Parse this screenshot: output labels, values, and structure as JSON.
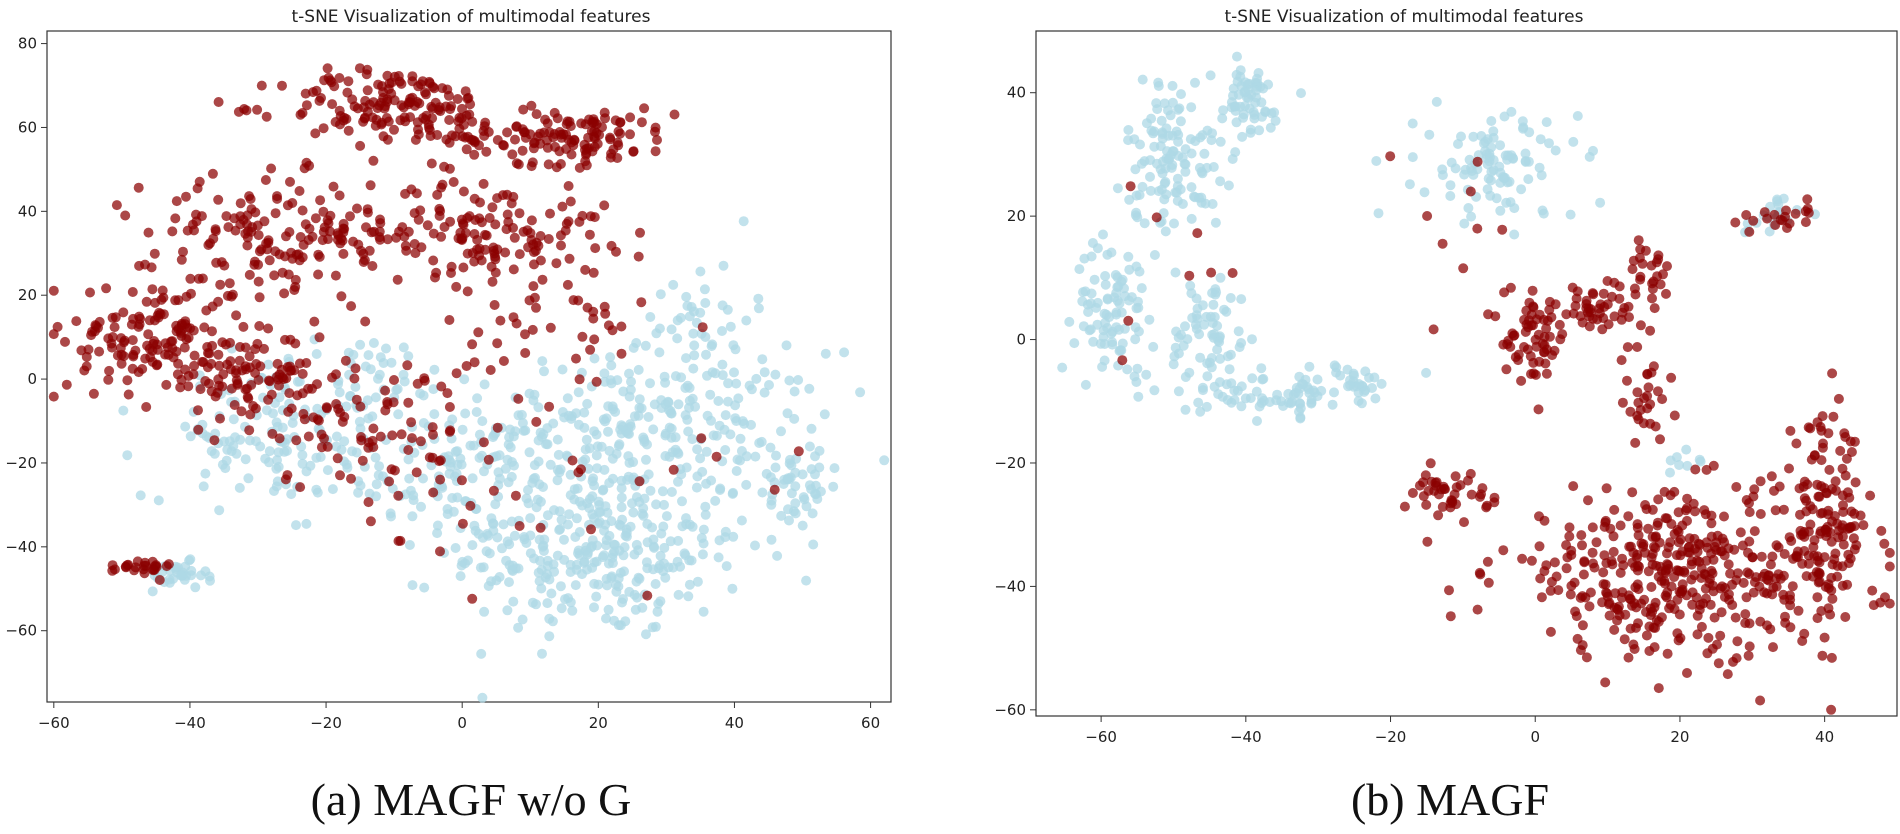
{
  "colors": {
    "light_blue": "#add8e6",
    "dark_red": "#8b0000",
    "axis": "#333333"
  },
  "panels": [
    {
      "caption": "(a) MAGF w/o G"
    },
    {
      "caption": "(b) MAGF"
    }
  ],
  "chart_data": [
    {
      "type": "scatter",
      "title": "t-SNE Visualization of multimodal features",
      "xlim": [
        -61,
        63
      ],
      "ylim": [
        -77,
        83
      ],
      "xticks": [
        -60,
        -40,
        -20,
        0,
        20,
        40,
        60
      ],
      "yticks": [
        -60,
        -40,
        -20,
        0,
        20,
        40,
        60,
        80
      ],
      "xtick_labels": [
        "−60",
        "−40",
        "−20",
        "0",
        "20",
        "40",
        "60"
      ],
      "ytick_labels": [
        "−60",
        "−40",
        "−20",
        "0",
        "20",
        "40",
        "60",
        "80"
      ],
      "grid": false,
      "series": [
        {
          "color": "#add8e6",
          "clusters": [
            {
              "cx": 20,
              "cy": -40,
              "rx": 20,
              "ry": 20,
              "n": 320
            },
            {
              "cx": 30,
              "cy": -10,
              "rx": 22,
              "ry": 15,
              "n": 200
            },
            {
              "cx": 0,
              "cy": -20,
              "rx": 20,
              "ry": 14,
              "n": 170
            },
            {
              "cx": -30,
              "cy": -15,
              "rx": 15,
              "ry": 12,
              "n": 90
            },
            {
              "cx": -42,
              "cy": -47,
              "rx": 4,
              "ry": 3,
              "n": 30
            },
            {
              "cx": 48,
              "cy": -25,
              "rx": 7,
              "ry": 10,
              "n": 50
            },
            {
              "cx": 35,
              "cy": 15,
              "rx": 7,
              "ry": 12,
              "n": 40
            },
            {
              "cx": -15,
              "cy": 0,
              "rx": 15,
              "ry": 10,
              "n": 60
            }
          ]
        },
        {
          "color": "#8b0000",
          "clusters": [
            {
              "cx": -10,
              "cy": 65,
              "rx": 15,
              "ry": 8,
              "n": 150
            },
            {
              "cx": 15,
              "cy": 58,
              "rx": 15,
              "ry": 6,
              "n": 130
            },
            {
              "cx": -25,
              "cy": 35,
              "rx": 20,
              "ry": 12,
              "n": 170
            },
            {
              "cx": -45,
              "cy": 10,
              "rx": 12,
              "ry": 14,
              "n": 150
            },
            {
              "cx": -30,
              "cy": 0,
              "rx": 10,
              "ry": 10,
              "n": 80
            },
            {
              "cx": 5,
              "cy": 35,
              "rx": 15,
              "ry": 12,
              "n": 130
            },
            {
              "cx": -15,
              "cy": -10,
              "rx": 15,
              "ry": 15,
              "n": 80
            },
            {
              "cx": -48,
              "cy": -45,
              "rx": 5,
              "ry": 2,
              "n": 25
            },
            {
              "cx": 15,
              "cy": 10,
              "rx": 15,
              "ry": 15,
              "n": 40
            },
            {
              "cx": 10,
              "cy": -30,
              "rx": 25,
              "ry": 20,
              "n": 30
            }
          ]
        }
      ]
    },
    {
      "type": "scatter",
      "title": "t-SNE Visualization of multimodal features",
      "xlim": [
        -69,
        50
      ],
      "ylim": [
        -61,
        50
      ],
      "xticks": [
        -60,
        -40,
        -20,
        0,
        20,
        40
      ],
      "yticks": [
        -60,
        -40,
        -20,
        0,
        20,
        40
      ],
      "xtick_labels": [
        "−60",
        "−40",
        "−20",
        "0",
        "20",
        "40"
      ],
      "ytick_labels": [
        "−60",
        "−40",
        "−20",
        "0",
        "20",
        "40"
      ],
      "grid": false,
      "series": [
        {
          "color": "#add8e6",
          "clusters": [
            {
              "cx": -50,
              "cy": 30,
              "rx": 6,
              "ry": 12,
              "n": 120
            },
            {
              "cx": -40,
              "cy": 38,
              "rx": 5,
              "ry": 6,
              "n": 60
            },
            {
              "cx": -58,
              "cy": 5,
              "rx": 5,
              "ry": 10,
              "n": 90
            },
            {
              "cx": -45,
              "cy": 0,
              "rx": 5,
              "ry": 10,
              "n": 70
            },
            {
              "cx": -35,
              "cy": -9,
              "rx": 10,
              "ry": 3,
              "n": 70
            },
            {
              "cx": -25,
              "cy": -7,
              "rx": 3,
              "ry": 3,
              "n": 20
            },
            {
              "cx": -5,
              "cy": 28,
              "rx": 10,
              "ry": 8,
              "n": 100
            },
            {
              "cx": 32,
              "cy": 20,
              "rx": 4,
              "ry": 3,
              "n": 20
            },
            {
              "cx": 20,
              "cy": -20,
              "rx": 3,
              "ry": 2,
              "n": 8
            }
          ]
        },
        {
          "color": "#8b0000",
          "clusters": [
            {
              "cx": 20,
              "cy": -38,
              "rx": 23,
              "ry": 12,
              "n": 420
            },
            {
              "cx": 40,
              "cy": -30,
              "rx": 5,
              "ry": 15,
              "n": 130
            },
            {
              "cx": 0,
              "cy": 0,
              "rx": 4,
              "ry": 6,
              "n": 60
            },
            {
              "cx": 8,
              "cy": 5,
              "rx": 6,
              "ry": 3,
              "n": 40
            },
            {
              "cx": 15,
              "cy": 10,
              "rx": 4,
              "ry": 6,
              "n": 30
            },
            {
              "cx": 15,
              "cy": -10,
              "rx": 3,
              "ry": 8,
              "n": 30
            },
            {
              "cx": 35,
              "cy": 20,
              "rx": 4,
              "ry": 2,
              "n": 20
            },
            {
              "cx": -12,
              "cy": -25,
              "rx": 5,
              "ry": 3,
              "n": 40
            },
            {
              "cx": -50,
              "cy": 10,
              "rx": 8,
              "ry": 15,
              "n": 8
            },
            {
              "cx": -10,
              "cy": 20,
              "rx": 8,
              "ry": 15,
              "n": 10
            }
          ]
        }
      ]
    }
  ]
}
